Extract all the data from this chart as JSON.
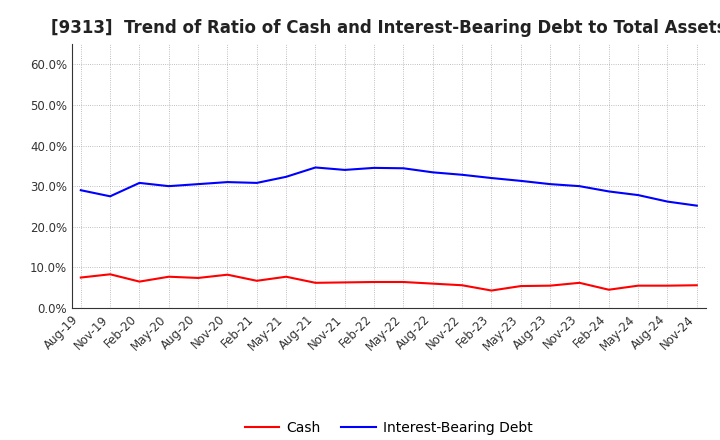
{
  "title": "[9313]  Trend of Ratio of Cash and Interest-Bearing Debt to Total Assets",
  "x_labels": [
    "Aug-19",
    "Nov-19",
    "Feb-20",
    "May-20",
    "Aug-20",
    "Nov-20",
    "Feb-21",
    "May-21",
    "Aug-21",
    "Nov-21",
    "Feb-22",
    "May-22",
    "Aug-22",
    "Nov-22",
    "Feb-23",
    "May-23",
    "Aug-23",
    "Nov-23",
    "Feb-24",
    "May-24",
    "Aug-24",
    "Nov-24"
  ],
  "cash": [
    0.075,
    0.083,
    0.065,
    0.077,
    0.074,
    0.082,
    0.067,
    0.077,
    0.062,
    0.063,
    0.064,
    0.064,
    0.06,
    0.056,
    0.043,
    0.054,
    0.055,
    0.062,
    0.045,
    0.055,
    0.055,
    0.056
  ],
  "debt": [
    0.29,
    0.275,
    0.308,
    0.3,
    0.305,
    0.31,
    0.308,
    0.323,
    0.346,
    0.34,
    0.345,
    0.344,
    0.334,
    0.328,
    0.32,
    0.313,
    0.305,
    0.3,
    0.287,
    0.278,
    0.262,
    0.252
  ],
  "cash_color": "#FF0000",
  "debt_color": "#0000FF",
  "background_color": "#FFFFFF",
  "grid_color": "#AAAAAA",
  "ylim": [
    0.0,
    0.65
  ],
  "yticks": [
    0.0,
    0.1,
    0.2,
    0.3,
    0.4,
    0.5,
    0.6
  ],
  "legend_cash": "Cash",
  "legend_debt": "Interest-Bearing Debt",
  "title_fontsize": 12,
  "tick_fontsize": 8.5,
  "legend_fontsize": 10
}
